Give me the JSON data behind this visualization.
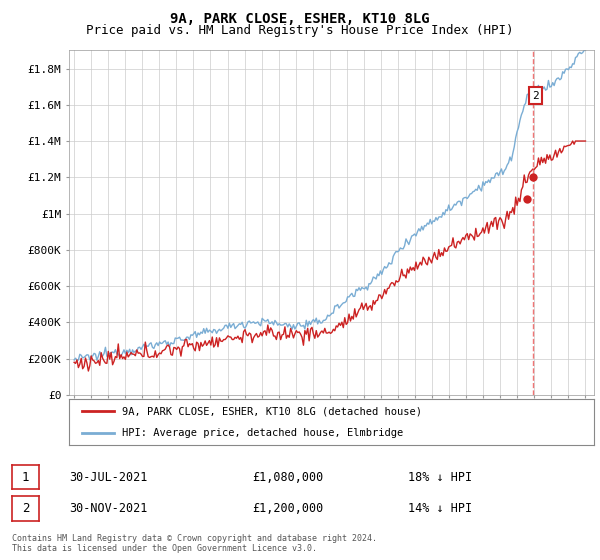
{
  "title": "9A, PARK CLOSE, ESHER, KT10 8LG",
  "subtitle": "Price paid vs. HM Land Registry's House Price Index (HPI)",
  "ylabel_ticks": [
    "£0",
    "£200K",
    "£400K",
    "£600K",
    "£800K",
    "£1M",
    "£1.2M",
    "£1.4M",
    "£1.6M",
    "£1.8M"
  ],
  "ytick_values": [
    0,
    200000,
    400000,
    600000,
    800000,
    1000000,
    1200000,
    1400000,
    1600000,
    1800000
  ],
  "ylim": [
    0,
    1900000
  ],
  "xlim_start": 1994.7,
  "xlim_end": 2025.5,
  "hpi_color": "#7aadd4",
  "price_color": "#cc2222",
  "dashed_line_color": "#ee6666",
  "annotation2_label": "2",
  "dashed_line_x": 2021.92,
  "t1": 2021.583,
  "t2": 2021.917,
  "p1": 1080000,
  "p2": 1200000,
  "legend_label_red": "9A, PARK CLOSE, ESHER, KT10 8LG (detached house)",
  "legend_label_blue": "HPI: Average price, detached house, Elmbridge",
  "table_row1": [
    "1",
    "30-JUL-2021",
    "£1,080,000",
    "18% ↓ HPI"
  ],
  "table_row2": [
    "2",
    "30-NOV-2021",
    "£1,200,000",
    "14% ↓ HPI"
  ],
  "footnote": "Contains HM Land Registry data © Crown copyright and database right 2024.\nThis data is licensed under the Open Government Licence v3.0.",
  "title_fontsize": 10,
  "subtitle_fontsize": 9,
  "tick_fontsize": 8,
  "grid_color": "#cccccc",
  "background_color": "#ffffff"
}
